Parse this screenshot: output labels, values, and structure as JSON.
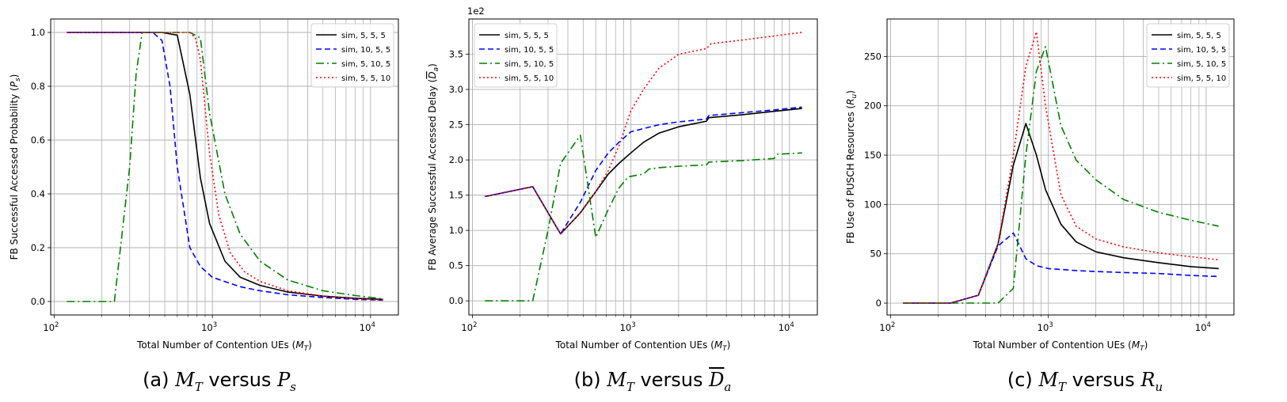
{
  "captions": {
    "a": {
      "label": "(a)",
      "var1": "M",
      "sub1": "T",
      "versus": "versus",
      "var2": "P",
      "sub2": "s"
    },
    "b": {
      "label": "(b)",
      "var1": "M",
      "sub1": "T",
      "versus": "versus",
      "var2": "D",
      "sub2": "a"
    },
    "c": {
      "label": "(c)",
      "var1": "M",
      "sub1": "T",
      "versus": "versus",
      "var2": "R",
      "sub2": "u"
    }
  },
  "chart_data": [
    {
      "type": "line",
      "xscale": "log",
      "xlabel": "Total Number of Contention UEs (M_T)",
      "ylabel": "FB Successful Accessed Probability (P_s)",
      "xlim": [
        95,
        15000
      ],
      "ylim": [
        -0.05,
        1.05
      ],
      "yticks": [
        0.0,
        0.2,
        0.4,
        0.6,
        0.8,
        1.0
      ],
      "ytick_labels": [
        "0.0",
        "0.2",
        "0.4",
        "0.6",
        "0.8",
        "1.0"
      ],
      "xticks": [
        100,
        1000,
        10000
      ],
      "xtick_labels": [
        "10^2",
        "10^3",
        "10^4"
      ],
      "grid": true,
      "legend_position": "top-right",
      "series": [
        {
          "name": "sim, 5, 5, 5",
          "color": "#000000",
          "dash": "solid",
          "x": [
            120,
            240,
            360,
            480,
            600,
            720,
            840,
            960,
            1200,
            1500,
            2000,
            3000,
            5000,
            8000,
            12000
          ],
          "y": [
            1.0,
            1.0,
            1.0,
            1.0,
            0.99,
            0.77,
            0.46,
            0.29,
            0.15,
            0.09,
            0.06,
            0.035,
            0.02,
            0.012,
            0.008
          ]
        },
        {
          "name": "sim, 10, 5, 5",
          "color": "#0000ff",
          "dash": "dashed",
          "x": [
            120,
            240,
            360,
            420,
            480,
            540,
            600,
            720,
            840,
            1000,
            1500,
            2000,
            3000,
            5000,
            8000,
            12000
          ],
          "y": [
            1.0,
            1.0,
            1.0,
            1.0,
            0.97,
            0.8,
            0.5,
            0.2,
            0.13,
            0.09,
            0.055,
            0.04,
            0.025,
            0.015,
            0.008,
            0.005
          ]
        },
        {
          "name": "sim, 5, 10, 5",
          "color": "#008000",
          "dash": "dashdot",
          "x": [
            120,
            240,
            300,
            330,
            360,
            400,
            480,
            600,
            720,
            840,
            960,
            1200,
            1500,
            2000,
            3000,
            5000,
            8000,
            12000
          ],
          "y": [
            0.0,
            0.0,
            0.5,
            0.85,
            1.0,
            1.0,
            1.0,
            1.0,
            1.0,
            0.98,
            0.7,
            0.4,
            0.25,
            0.15,
            0.08,
            0.04,
            0.022,
            0.01
          ]
        },
        {
          "name": "sim, 5, 5, 10",
          "color": "#ff0000",
          "dash": "dotted",
          "x": [
            120,
            240,
            360,
            480,
            600,
            720,
            780,
            840,
            960,
            1100,
            1300,
            1600,
            2000,
            3000,
            5000,
            8000,
            12000
          ],
          "y": [
            1.0,
            1.0,
            1.0,
            1.0,
            1.0,
            1.0,
            0.98,
            0.9,
            0.55,
            0.32,
            0.18,
            0.11,
            0.075,
            0.04,
            0.02,
            0.01,
            0.005
          ]
        }
      ]
    },
    {
      "type": "line",
      "xscale": "log",
      "xlabel": "Total Number of Contention UEs (M_T)",
      "ylabel": "FB Average Successful Accessed Delay (D_a)",
      "scale_note": "1e2",
      "xlim": [
        95,
        15000
      ],
      "ylim": [
        -0.2,
        4.0
      ],
      "yticks": [
        0.0,
        0.5,
        1.0,
        1.5,
        2.0,
        2.5,
        3.0,
        3.5
      ],
      "ytick_labels": [
        "0.0",
        "0.5",
        "1.0",
        "1.5",
        "2.0",
        "2.5",
        "3.0",
        "3.5"
      ],
      "xticks": [
        100,
        1000,
        10000
      ],
      "xtick_labels": [
        "10^2",
        "10^3",
        "10^4"
      ],
      "grid": true,
      "legend_position": "top-left",
      "series": [
        {
          "name": "sim, 5, 5, 5",
          "color": "#000000",
          "dash": "solid",
          "x": [
            120,
            240,
            360,
            480,
            600,
            720,
            840,
            1000,
            1200,
            1500,
            2000,
            3000,
            3100,
            5000,
            8000,
            12000
          ],
          "y": [
            1.48,
            1.62,
            0.95,
            1.25,
            1.55,
            1.8,
            1.95,
            2.1,
            2.25,
            2.38,
            2.47,
            2.55,
            2.6,
            2.64,
            2.69,
            2.73
          ]
        },
        {
          "name": "sim, 10, 5, 5",
          "color": "#0000ff",
          "dash": "dashed",
          "x": [
            120,
            240,
            360,
            480,
            600,
            720,
            840,
            1000,
            1500,
            2000,
            3000,
            3100,
            5000,
            8000,
            12000
          ],
          "y": [
            1.48,
            1.62,
            0.95,
            1.4,
            1.85,
            2.1,
            2.25,
            2.4,
            2.5,
            2.54,
            2.58,
            2.63,
            2.67,
            2.71,
            2.75
          ]
        },
        {
          "name": "sim, 5, 10, 5",
          "color": "#008000",
          "dash": "dashdot",
          "x": [
            120,
            240,
            300,
            360,
            480,
            600,
            720,
            840,
            960,
            1200,
            1300,
            1500,
            2000,
            3000,
            3100,
            5000,
            8000,
            8400,
            12000
          ],
          "y": [
            0.0,
            0.0,
            1.0,
            1.95,
            2.35,
            0.9,
            1.3,
            1.6,
            1.76,
            1.8,
            1.87,
            1.89,
            1.91,
            1.93,
            1.97,
            1.99,
            2.02,
            2.08,
            2.1
          ]
        },
        {
          "name": "sim, 5, 5, 10",
          "color": "#ff0000",
          "dash": "dotted",
          "x": [
            120,
            240,
            360,
            480,
            600,
            720,
            840,
            1000,
            1200,
            1500,
            2000,
            3000,
            3200,
            5000,
            8000,
            12000
          ],
          "y": [
            1.48,
            1.62,
            0.95,
            1.25,
            1.55,
            1.85,
            2.2,
            2.7,
            3.0,
            3.3,
            3.5,
            3.58,
            3.65,
            3.7,
            3.76,
            3.81
          ]
        }
      ]
    },
    {
      "type": "line",
      "xscale": "log",
      "xlabel": "Total Number of Contention UEs (M_T)",
      "ylabel": "FB Use of PUSCH Resources (R_u)",
      "xlim": [
        95,
        15000
      ],
      "ylim": [
        -12,
        288
      ],
      "yticks": [
        0,
        50,
        100,
        150,
        200,
        250
      ],
      "ytick_labels": [
        "0",
        "50",
        "100",
        "150",
        "200",
        "250"
      ],
      "xticks": [
        100,
        1000,
        10000
      ],
      "xtick_labels": [
        "10^2",
        "10^3",
        "10^4"
      ],
      "grid": true,
      "legend_position": "top-right",
      "series": [
        {
          "name": "sim, 5, 5, 5",
          "color": "#000000",
          "dash": "solid",
          "x": [
            120,
            240,
            360,
            480,
            600,
            720,
            840,
            960,
            1200,
            1500,
            2000,
            3000,
            5000,
            8000,
            12000
          ],
          "y": [
            0,
            0,
            8,
            60,
            140,
            182,
            150,
            115,
            80,
            62,
            52,
            46,
            41,
            37,
            35
          ]
        },
        {
          "name": "sim, 10, 5, 5",
          "color": "#0000ff",
          "dash": "dashed",
          "x": [
            120,
            240,
            360,
            480,
            600,
            720,
            840,
            1000,
            1500,
            2000,
            3000,
            5000,
            8000,
            12000
          ],
          "y": [
            0,
            0,
            8,
            58,
            71,
            45,
            38,
            35,
            33,
            32,
            31,
            30,
            28,
            27
          ]
        },
        {
          "name": "sim, 5, 10, 5",
          "color": "#008000",
          "dash": "dashdot",
          "x": [
            120,
            240,
            360,
            480,
            600,
            720,
            840,
            960,
            1200,
            1500,
            2000,
            3000,
            5000,
            8000,
            12000
          ],
          "y": [
            0,
            0,
            0,
            0,
            15,
            150,
            235,
            260,
            180,
            145,
            125,
            105,
            92,
            84,
            78
          ]
        },
        {
          "name": "sim, 5, 5, 10",
          "color": "#ff0000",
          "dash": "dotted",
          "x": [
            120,
            240,
            360,
            480,
            600,
            720,
            840,
            960,
            1200,
            1500,
            2000,
            3000,
            5000,
            8000,
            12000
          ],
          "y": [
            0,
            0,
            8,
            60,
            150,
            240,
            275,
            200,
            110,
            78,
            65,
            57,
            51,
            47,
            44
          ]
        }
      ]
    }
  ]
}
